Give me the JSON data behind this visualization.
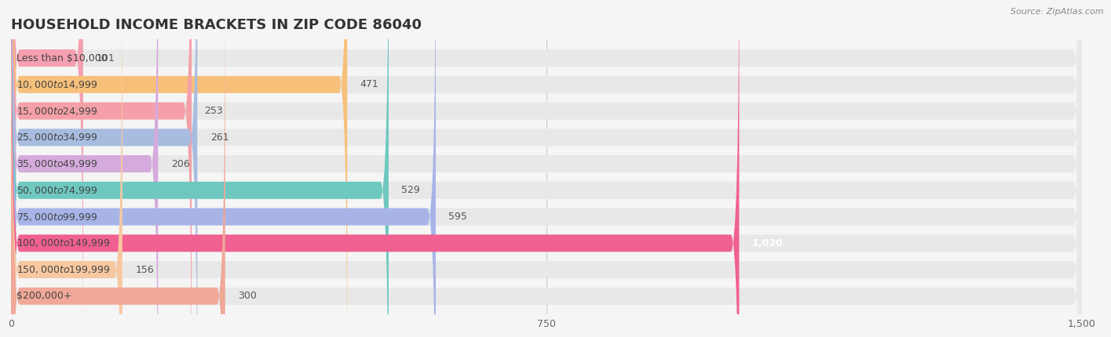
{
  "title": "HOUSEHOLD INCOME BRACKETS IN ZIP CODE 86040",
  "source": "Source: ZipAtlas.com",
  "categories": [
    "Less than $10,000",
    "$10,000 to $14,999",
    "$15,000 to $24,999",
    "$25,000 to $34,999",
    "$35,000 to $49,999",
    "$50,000 to $74,999",
    "$75,000 to $99,999",
    "$100,000 to $149,999",
    "$150,000 to $199,999",
    "$200,000+"
  ],
  "values": [
    101,
    471,
    253,
    261,
    206,
    529,
    595,
    1020,
    156,
    300
  ],
  "bar_colors": [
    "#f5a0b0",
    "#f7c07a",
    "#f5a0a8",
    "#a8bce0",
    "#d5aadc",
    "#6ec8c0",
    "#a8b4e8",
    "#f06090",
    "#f7c8a0",
    "#f0a898"
  ],
  "background_color": "#f5f5f5",
  "xlim": [
    0,
    1500
  ],
  "xticks": [
    0,
    750,
    1500
  ],
  "title_fontsize": 13,
  "label_fontsize": 9,
  "value_fontsize": 9,
  "bar_height": 0.65,
  "value_inside_index": 7,
  "rounding_size": 12
}
